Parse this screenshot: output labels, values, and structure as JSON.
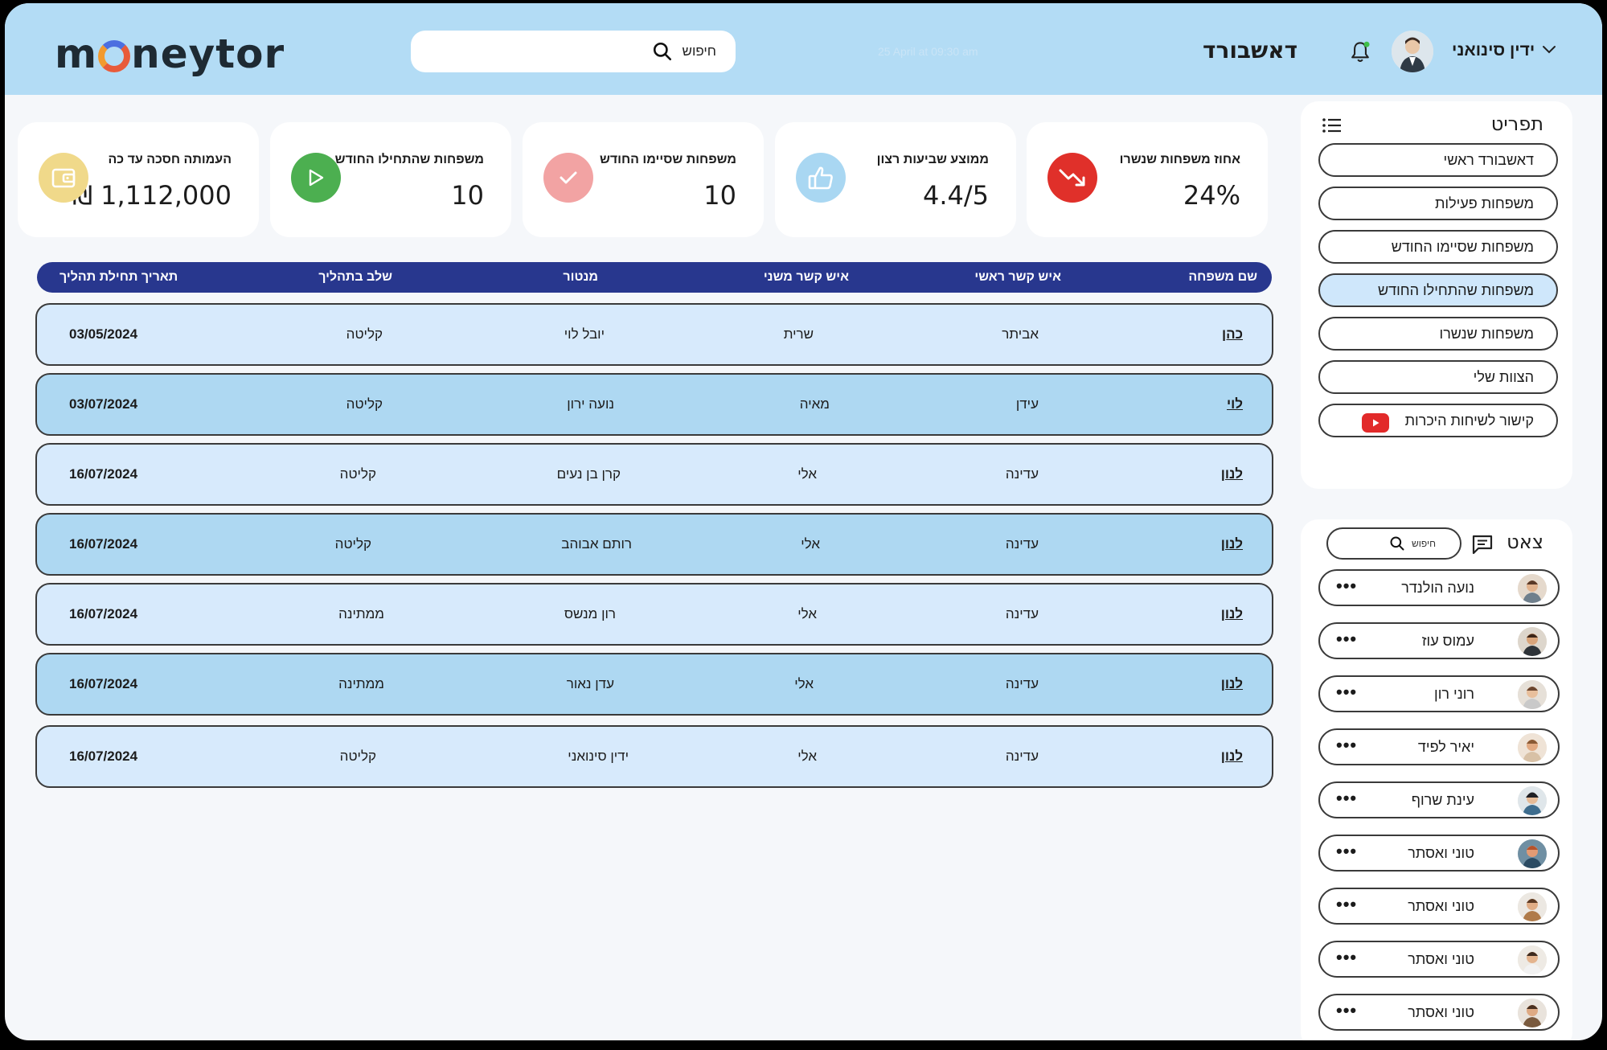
{
  "header": {
    "logo_left": "m",
    "logo_right": "neytor",
    "search_placeholder": "חיפוש",
    "ghost_date": "25 April at 09:30 am",
    "page_title": "דאשבורד",
    "user_name": "ידין סינואני"
  },
  "stats": [
    {
      "label": "אחוז משפחות שנשרו",
      "value": "24%",
      "icon": "trend-down-icon",
      "color": "#e0302a"
    },
    {
      "label": "ממוצע שביעות רצון",
      "value": "4.4/5",
      "icon": "thumbs-up-icon",
      "color": "#a9d7f2"
    },
    {
      "label": "משפחות שסיימו החודש",
      "value": "10",
      "icon": "check-icon",
      "color": "#f2a3a3"
    },
    {
      "label": "משפחות שהתחילו החודש",
      "value": "10",
      "icon": "play-icon",
      "color": "#4caf50"
    },
    {
      "label": "העמותה חסכה עד כה",
      "value": "₪ 1,112,000",
      "icon": "wallet-icon",
      "color": "#f0d98a"
    }
  ],
  "table": {
    "headers": {
      "family": "שם משפחה",
      "contact1": "איש קשר ראשי",
      "contact2": "איש קשר משני",
      "mentor": "מנטור",
      "stage": "שלב בתהליך",
      "start": "תאריך תחילת תהליך"
    },
    "rows": [
      {
        "family": "כהן",
        "contact1": "אביתר",
        "contact2": "שרית",
        "mentor": "יובל לוי",
        "stage": "קליטה",
        "start": "03/05/2024"
      },
      {
        "family": "לוי",
        "contact1": "עידן",
        "contact2": "מאיה",
        "mentor": "נועה ירון",
        "stage": "קליטה",
        "start": "03/07/2024"
      },
      {
        "family": "לנון",
        "contact1": "עדינה",
        "contact2": "אלי",
        "mentor": "קרן בן נעים",
        "stage": "קליטה",
        "start": "16/07/2024"
      },
      {
        "family": "לנון",
        "contact1": "עדינה",
        "contact2": "אלי",
        "mentor": "רותם אבוהב",
        "stage": "קליטה",
        "start": "16/07/2024"
      },
      {
        "family": "לנון",
        "contact1": "עדינה",
        "contact2": "אלי",
        "mentor": "רון מנשס",
        "stage": "ממתינה",
        "start": "16/07/2024"
      },
      {
        "family": "לנון",
        "contact1": "עדינה",
        "contact2": "אלי",
        "mentor": "עדן נאור",
        "stage": "ממתינה",
        "start": "16/07/2024"
      },
      {
        "family": "לנון",
        "contact1": "עדינה",
        "contact2": "אלי",
        "mentor": "ידין סינואני",
        "stage": "קליטה",
        "start": "16/07/2024"
      }
    ]
  },
  "menu": {
    "title": "תפריט",
    "items": [
      "דאשבורד ראשי",
      "משפחות פעילות",
      "משפחות שסיימו החודש",
      "משפחות שהתחילו החודש",
      "משפחות שנשרו",
      "הצוות שלי",
      "קישור לשיחות היכרות"
    ],
    "active_index": 3
  },
  "chat": {
    "title": "צאט",
    "search_placeholder": "חיפוש",
    "contacts": [
      "נועה הולנדר",
      "עמוס עוז",
      "רוני רון",
      "יאיר לפיד",
      "עינת שרוף",
      "טוני ואסתר",
      "טוני ואסתר",
      "טוני ואסתר",
      "טוני ואסתר"
    ],
    "more_label": "•••"
  }
}
